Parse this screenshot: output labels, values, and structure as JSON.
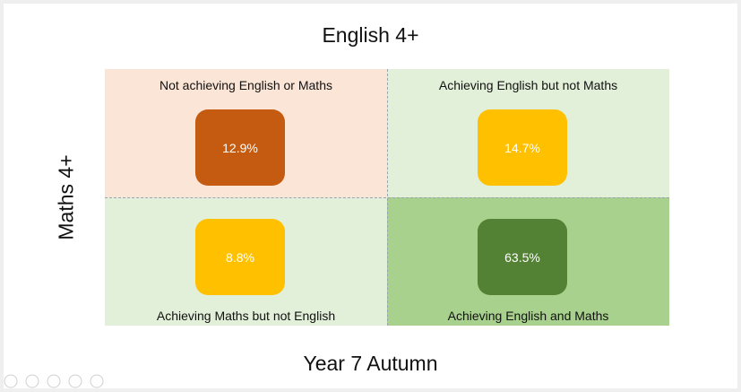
{
  "header": {
    "title": "English 4+"
  },
  "y_label": "Maths 4+",
  "footer": "Year 7 Autumn",
  "quadrants": [
    {
      "label": "Not achieving English or Maths",
      "value": "12.9%"
    },
    {
      "label": "Achieving English but not Maths",
      "value": "14.7%"
    },
    {
      "label": "Achieving Maths but not English",
      "value": "8.8%"
    },
    {
      "label": "Achieving English and Maths",
      "value": "63.5%"
    }
  ]
}
